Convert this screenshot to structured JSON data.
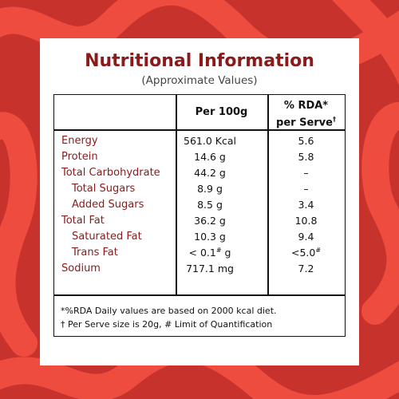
{
  "title": "Nutritional Information",
  "subtitle": "(Approximate Values)",
  "table": {
    "header": {
      "per100g": "Per 100g",
      "rda_line1": "% RDA*",
      "rda_line2": "per Serve",
      "rda_line2_sup": "†"
    },
    "rows": [
      {
        "label": "Energy",
        "indent": false,
        "per100g": "561.0 Kcal",
        "rda": "5.6"
      },
      {
        "label": "Protein",
        "indent": false,
        "per100g": "14.6 g",
        "rda": "5.8"
      },
      {
        "label": "Total Carbohydrate",
        "indent": false,
        "per100g": "44.2 g",
        "rda": "–"
      },
      {
        "label": "Total Sugars",
        "indent": true,
        "per100g": "8.9 g",
        "rda": "–"
      },
      {
        "label": "Added Sugars",
        "indent": true,
        "per100g": "8.5 g",
        "rda": "3.4"
      },
      {
        "label": "Total Fat",
        "indent": false,
        "per100g": "36.2 g",
        "rda": "10.8"
      },
      {
        "label": "Saturated Fat",
        "indent": true,
        "per100g": "10.3 g",
        "rda": "9.4"
      },
      {
        "label": "Trans Fat",
        "indent": true,
        "per100g": "< 0.1",
        "per100g_sup": "#",
        "per100g_after": " g",
        "rda": "<5.0",
        "rda_sup": "#"
      },
      {
        "label": "Sodium",
        "indent": false,
        "per100g": "717.1 mg",
        "rda": "7.2"
      }
    ],
    "footnotes": [
      "*%RDA Daily values are based on 2000 kcal diet.",
      "† Per Serve size is 20g, # Limit of Quantification"
    ]
  }
}
